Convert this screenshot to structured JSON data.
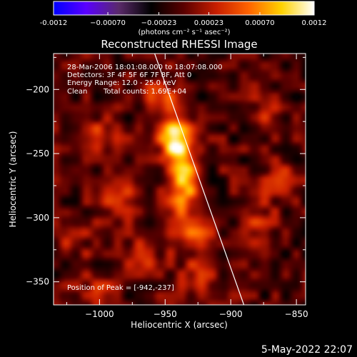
{
  "chart_data": {
    "type": "heatmap",
    "title": "Reconstructed RHESSI Image",
    "xlabel": "Heliocentric X (arcsec)",
    "ylabel": "Heliocentric Y (arcsec)",
    "xlim": [
      -1035,
      -843
    ],
    "ylim": [
      -368,
      -172
    ],
    "x_ticks": [
      -1000,
      -950,
      -900,
      -850
    ],
    "y_ticks": [
      -200,
      -250,
      -300,
      -350
    ],
    "x_tick_labels": [
      "−1000",
      "−950",
      "−900",
      "−850"
    ],
    "y_tick_labels": [
      "−200",
      "−250",
      "−300",
      "−350"
    ],
    "colorbar": {
      "range": [
        -0.0012,
        0.0012
      ],
      "ticks": [
        -0.0012,
        -0.0007,
        -0.00023,
        0.00023,
        0.0007,
        0.0012
      ],
      "tick_labels": [
        "-0.0012",
        "−0.00070",
        "−0.00023",
        "0.00023",
        "0.00070",
        "0.0012"
      ],
      "label": "(photons cm⁻² s⁻¹ asec⁻²)",
      "colors": [
        "#0000ff",
        "#5a00ff",
        "#5a2a6a",
        "#000000",
        "#5a0000",
        "#c81e00",
        "#ff6400",
        "#ffd200",
        "#ffffff"
      ]
    },
    "annotations": {
      "line1": "28-Mar-2006 18:01:08.000 to 18:07:08.000",
      "line2": "Detectors: 3F 4F 5F 6F 7F 8F, Att 0",
      "line3": "Energy Range: 12.0 - 25.0 keV",
      "line4_left": "Clean",
      "line4_right": "Total counts: 1.69E+04",
      "peak": "Position of Peak = [-942,-237]"
    },
    "peak_position": [
      -942,
      -237
    ],
    "limb_line": {
      "x": [
        -958,
        -890
      ],
      "y": [
        -172,
        -368
      ]
    },
    "sources": [
      {
        "x": -942,
        "y": -237,
        "sigma_x": 9,
        "sigma_y": 12,
        "amp": 1.0
      },
      {
        "x": -936,
        "y": -262,
        "sigma_x": 8,
        "sigma_y": 12,
        "amp": 0.72
      },
      {
        "x": -952,
        "y": -205,
        "sigma_x": 10,
        "sigma_y": 10,
        "amp": 0.45
      },
      {
        "x": -938,
        "y": -285,
        "sigma_x": 10,
        "sigma_y": 10,
        "amp": 0.5
      },
      {
        "x": -930,
        "y": -310,
        "sigma_x": 11,
        "sigma_y": 12,
        "amp": 0.42
      },
      {
        "x": -925,
        "y": -345,
        "sigma_x": 10,
        "sigma_y": 12,
        "amp": 0.35
      },
      {
        "x": -1000,
        "y": -235,
        "sigma_x": 12,
        "sigma_y": 10,
        "amp": 0.28
      },
      {
        "x": -985,
        "y": -285,
        "sigma_x": 14,
        "sigma_y": 11,
        "amp": 0.32
      },
      {
        "x": -1020,
        "y": -315,
        "sigma_x": 10,
        "sigma_y": 12,
        "amp": 0.28
      },
      {
        "x": -1005,
        "y": -355,
        "sigma_x": 14,
        "sigma_y": 9,
        "amp": 0.25
      },
      {
        "x": -880,
        "y": -300,
        "sigma_x": 10,
        "sigma_y": 14,
        "amp": 0.3
      },
      {
        "x": -862,
        "y": -270,
        "sigma_x": 8,
        "sigma_y": 10,
        "amp": 0.28
      },
      {
        "x": -875,
        "y": -220,
        "sigma_x": 10,
        "sigma_y": 10,
        "amp": 0.22
      },
      {
        "x": -965,
        "y": -330,
        "sigma_x": 10,
        "sigma_y": 10,
        "amp": 0.28
      }
    ]
  },
  "footer": {
    "date": "5-May-2022 22:07"
  }
}
